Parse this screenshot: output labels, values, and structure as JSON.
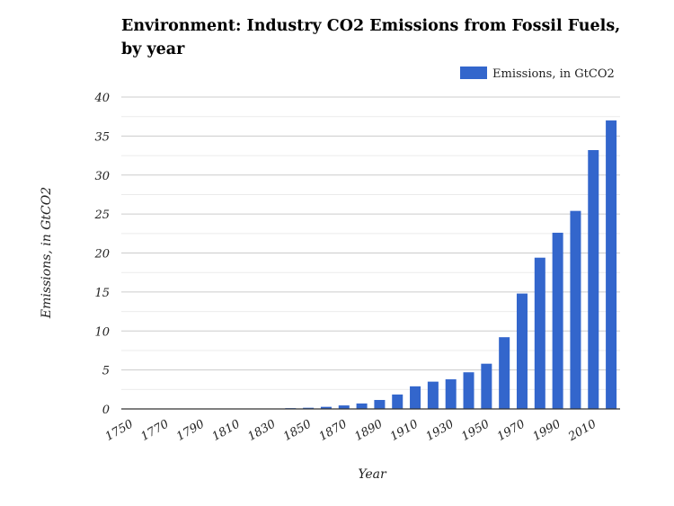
{
  "chart_data": {
    "type": "bar",
    "title_lines": [
      "Environment: Industry CO2 Emissions from Fossil Fuels,",
      "by year"
    ],
    "xlabel": "Year",
    "ylabel": "Emissions, in GtCO2",
    "ylim": [
      0,
      40
    ],
    "yticks": [
      0,
      5,
      10,
      15,
      20,
      25,
      30,
      35,
      40
    ],
    "xtick_labels": [
      "1750",
      "1770",
      "1790",
      "1810",
      "1830",
      "1850",
      "1870",
      "1890",
      "1910",
      "1930",
      "1950",
      "1970",
      "1990",
      "2010"
    ],
    "categories": [
      "1750",
      "1760",
      "1770",
      "1780",
      "1790",
      "1800",
      "1810",
      "1820",
      "1830",
      "1840",
      "1850",
      "1860",
      "1870",
      "1880",
      "1890",
      "1900",
      "1910",
      "1920",
      "1930",
      "1940",
      "1950",
      "1960",
      "1970",
      "1980",
      "1990",
      "2000",
      "2010",
      "2020"
    ],
    "series": [
      {
        "name": "Emissions, in GtCO2",
        "color": "#3366cc",
        "values": [
          0.01,
          0.01,
          0.01,
          0.02,
          0.02,
          0.03,
          0.03,
          0.04,
          0.05,
          0.1,
          0.15,
          0.27,
          0.45,
          0.7,
          1.15,
          1.85,
          2.9,
          3.5,
          3.8,
          4.7,
          5.8,
          9.2,
          14.8,
          19.4,
          22.6,
          25.4,
          33.2,
          37.0
        ]
      }
    ],
    "grid": true,
    "legend_position": "top-right"
  }
}
